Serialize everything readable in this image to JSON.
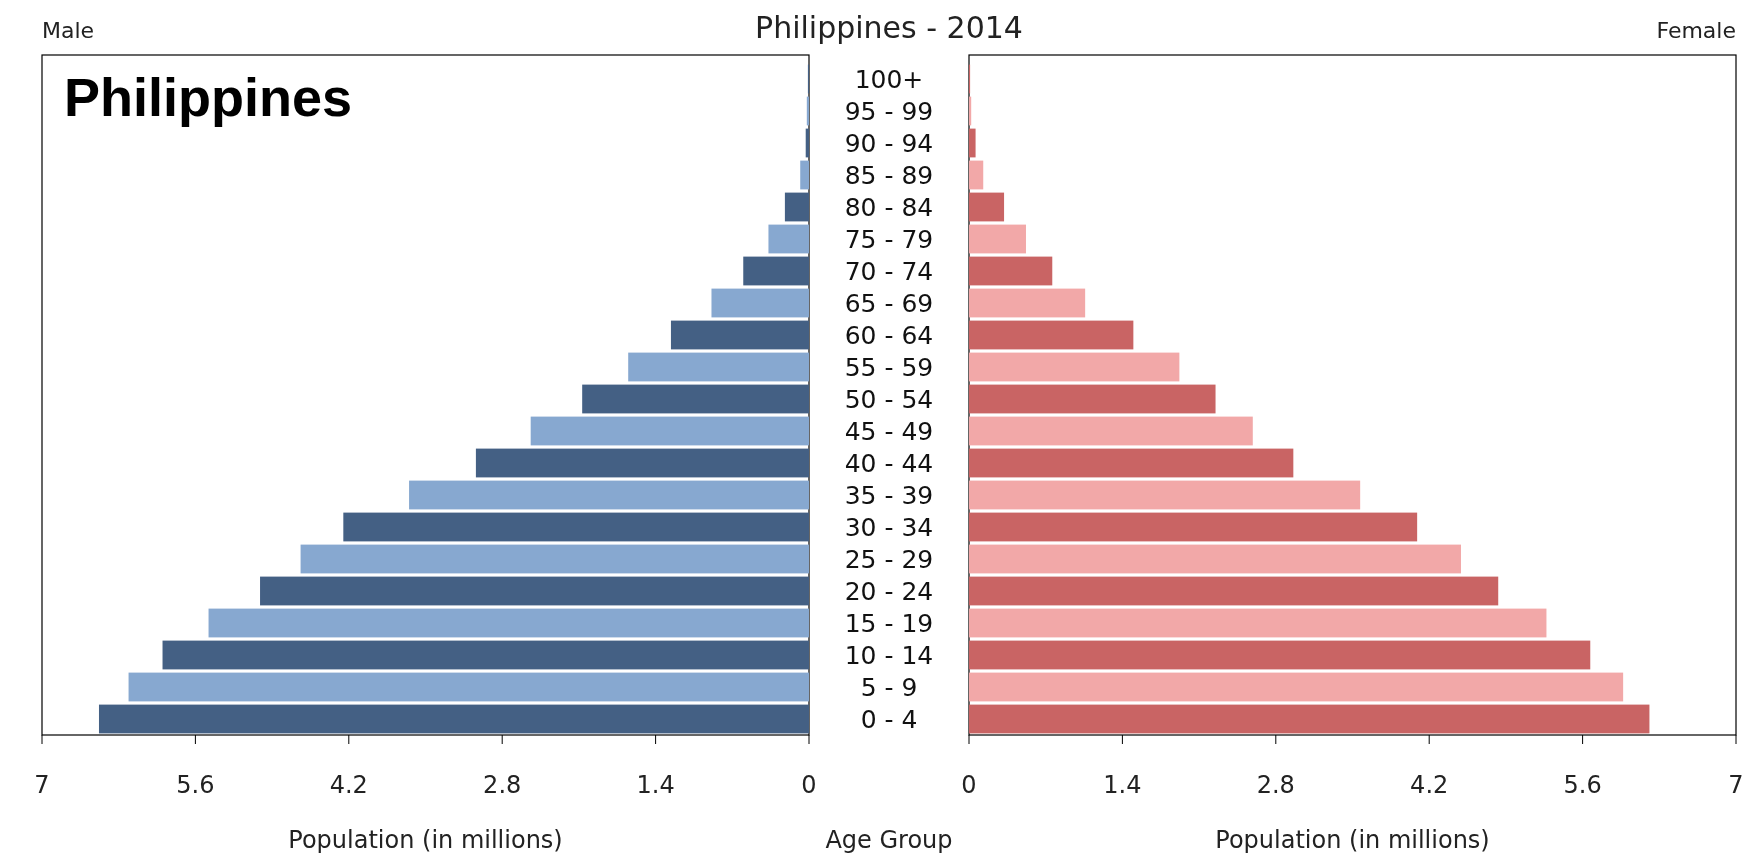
{
  "chart_data": [
    {
      "type": "bar",
      "orientation": "horizontal",
      "title": "Philippines - 2014",
      "xlabel": "Population (in millions)",
      "ylabel": "Age Group",
      "annotations": [
        "Philippines"
      ],
      "categories": [
        "100+",
        "95 - 99",
        "90 - 94",
        "85 - 89",
        "80 - 84",
        "75 - 79",
        "70 - 74",
        "65 - 69",
        "60 - 64",
        "55 - 59",
        "50 - 54",
        "45 - 49",
        "40 - 44",
        "35 - 39",
        "30 - 34",
        "25 - 29",
        "20 - 24",
        "15 - 19",
        "10 - 14",
        "5 - 9",
        "0 - 4"
      ],
      "series": [
        {
          "name": "Male",
          "colors": [
            "#446084",
            "#87a8d0",
            "#446084",
            "#87a8d0",
            "#446084",
            "#87a8d0",
            "#446084",
            "#87a8d0",
            "#446084",
            "#87a8d0",
            "#446084",
            "#87a8d0",
            "#446084",
            "#87a8d0",
            "#446084",
            "#87a8d0",
            "#446084",
            "#87a8d0",
            "#446084",
            "#87a8d0",
            "#446084"
          ],
          "values": [
            0.01,
            0.02,
            0.03,
            0.08,
            0.22,
            0.37,
            0.6,
            0.89,
            1.26,
            1.65,
            2.07,
            2.54,
            3.04,
            3.65,
            4.25,
            4.64,
            5.01,
            5.48,
            5.9,
            6.21,
            6.48
          ]
        }
      ],
      "xlim": [
        7,
        0
      ],
      "xticks": [
        7,
        5.6,
        4.2,
        2.8,
        1.4,
        0
      ]
    },
    {
      "type": "bar",
      "orientation": "horizontal",
      "xlabel": "Population (in millions)",
      "tick_labels": "x",
      "categories": [
        "100+",
        "95 - 99",
        "90 - 94",
        "85 - 89",
        "80 - 84",
        "75 - 79",
        "70 - 74",
        "65 - 69",
        "60 - 64",
        "55 - 59",
        "50 - 54",
        "45 - 49",
        "40 - 44",
        "35 - 39",
        "30 - 34",
        "25 - 29",
        "20 - 24",
        "15 - 19",
        "10 - 14",
        "5 - 9",
        "0 - 4"
      ],
      "series": [
        {
          "name": "Female",
          "colors": [
            "#c96464",
            "#f2a8a8",
            "#c96464",
            "#f2a8a8",
            "#c96464",
            "#f2a8a8",
            "#c96464",
            "#f2a8a8",
            "#c96464",
            "#f2a8a8",
            "#c96464",
            "#f2a8a8",
            "#c96464",
            "#f2a8a8",
            "#c96464",
            "#f2a8a8",
            "#c96464",
            "#f2a8a8",
            "#c96464",
            "#f2a8a8",
            "#c96464"
          ],
          "values": [
            0.01,
            0.02,
            0.06,
            0.13,
            0.32,
            0.52,
            0.76,
            1.06,
            1.5,
            1.92,
            2.25,
            2.59,
            2.96,
            3.57,
            4.09,
            4.49,
            4.83,
            5.27,
            5.67,
            5.97,
            6.21
          ]
        }
      ],
      "xlim": [
        0,
        7
      ],
      "xticks": [
        0,
        1.4,
        2.8,
        4.2,
        5.6,
        7
      ]
    }
  ]
}
